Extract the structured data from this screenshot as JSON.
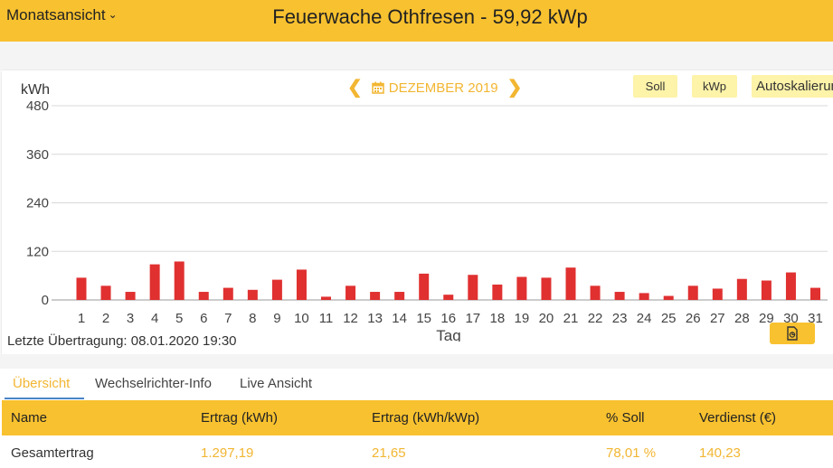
{
  "header": {
    "view_select": "Monatsansicht",
    "plant_title": "Feuerwache Othfresen - 59,92 kWp"
  },
  "chart_controls": {
    "month_label": "DEZEMBER 2019",
    "chips": {
      "soll": "Soll",
      "kwp": "kWp",
      "auto": "Autoskalierung"
    }
  },
  "chart_data": {
    "type": "bar",
    "ylabel": "kWh",
    "xlabel": "Tag",
    "ylim": [
      0,
      480
    ],
    "y_ticks": [
      0,
      120,
      240,
      360,
      480
    ],
    "grid": true,
    "bar_color": "#e03030",
    "categories": [
      "1",
      "2",
      "3",
      "4",
      "5",
      "6",
      "7",
      "8",
      "9",
      "10",
      "11",
      "12",
      "13",
      "14",
      "15",
      "16",
      "17",
      "18",
      "19",
      "20",
      "21",
      "22",
      "23",
      "24",
      "25",
      "26",
      "27",
      "28",
      "29",
      "30",
      "31"
    ],
    "values": [
      55,
      35,
      20,
      88,
      95,
      20,
      30,
      25,
      50,
      75,
      8,
      35,
      20,
      20,
      65,
      13,
      62,
      38,
      57,
      55,
      80,
      35,
      20,
      17,
      10,
      35,
      28,
      52,
      48,
      68,
      30
    ]
  },
  "footer": {
    "last_transfer": "Letzte Übertragung: 08.01.2020 19:30"
  },
  "tabs": [
    {
      "label": "Übersicht",
      "active": true
    },
    {
      "label": "Wechselrichter-Info",
      "active": false
    },
    {
      "label": "Live Ansicht",
      "active": false
    }
  ],
  "table": {
    "headers": [
      "Name",
      "Ertrag (kWh)",
      "Ertrag (kWh/kWp)",
      "% Soll",
      "Verdienst (€)"
    ],
    "rows": [
      [
        "Gesamtertrag",
        "1.297,19",
        "21,65",
        "78,01 %",
        "140,23"
      ]
    ]
  },
  "colors": {
    "accent": "#f8c12f",
    "accent_text": "#f2b632",
    "chip_bg": "#fdf3a9",
    "bar": "#e03030"
  }
}
